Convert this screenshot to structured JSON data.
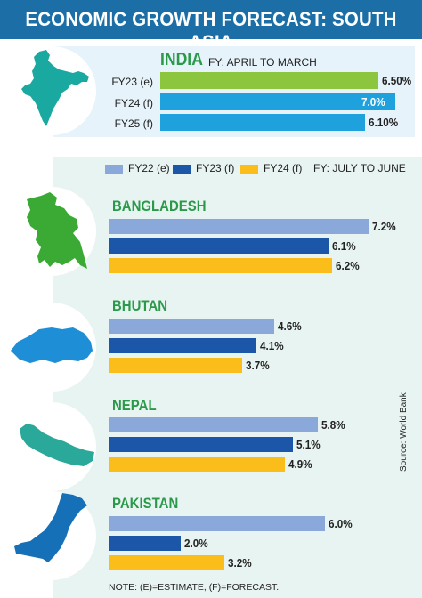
{
  "header": {
    "title": "ECONOMIC GROWTH FORECAST: SOUTH ASIA"
  },
  "india": {
    "name": "INDIA",
    "fy_note": "FY: APRIL TO MARCH",
    "rows": [
      {
        "label": "FY23 (e)",
        "value_label": "6.50%",
        "color": "#8cc63f"
      },
      {
        "label": "FY24 (f)",
        "value_label": "7.0%",
        "color": "#1ea1dc"
      },
      {
        "label": "FY25 (f)",
        "value_label": "6.10%",
        "color": "#1ea1dc"
      }
    ]
  },
  "legend": {
    "items": [
      {
        "label": "FY22 (e)",
        "color": "#8aa9da"
      },
      {
        "label": "FY23 (f)",
        "color": "#1c56a8"
      },
      {
        "label": "FY24 (f)",
        "color": "#fbbd19"
      }
    ],
    "fy_note": "FY: JULY TO JUNE"
  },
  "countries": [
    {
      "name": "BANGLADESH",
      "value_labels": [
        "7.2%",
        "6.1%",
        "6.2%"
      ]
    },
    {
      "name": "BHUTAN",
      "value_labels": [
        "4.6%",
        "4.1%",
        "3.7%"
      ]
    },
    {
      "name": "NEPAL",
      "value_labels": [
        "5.8%",
        "5.1%",
        "4.9%"
      ]
    },
    {
      "name": "PAKISTAN",
      "value_labels": [
        "6.0%",
        "2.0%",
        "3.2%"
      ]
    }
  ],
  "source": "Source: World Bank",
  "note": "NOTE: (E)=ESTIMATE, (F)=FORECAST.",
  "chart_data": [
    {
      "type": "bar",
      "title": "INDIA",
      "categories": [
        "FY23 (e)",
        "FY24 (f)",
        "FY25 (f)"
      ],
      "values": [
        6.5,
        7.0,
        6.1
      ]
    },
    {
      "type": "bar",
      "categories": [
        "BANGLADESH",
        "BHUTAN",
        "NEPAL",
        "PAKISTAN"
      ],
      "series": [
        {
          "name": "FY22 (e)",
          "values": [
            7.2,
            4.6,
            5.8,
            6.0
          ]
        },
        {
          "name": "FY23 (f)",
          "values": [
            6.1,
            4.1,
            5.1,
            2.0
          ]
        },
        {
          "name": "FY24 (f)",
          "values": [
            6.2,
            3.7,
            4.9,
            3.2
          ]
        }
      ]
    }
  ],
  "colors": {
    "header": "#1b6fa6",
    "india_map": "#1aa9a0",
    "bangladesh_map": "#3aaa35",
    "bhutan_map": "#1e8fd6",
    "nepal_map": "#2aa89a",
    "pakistan_map": "#1570b8"
  }
}
